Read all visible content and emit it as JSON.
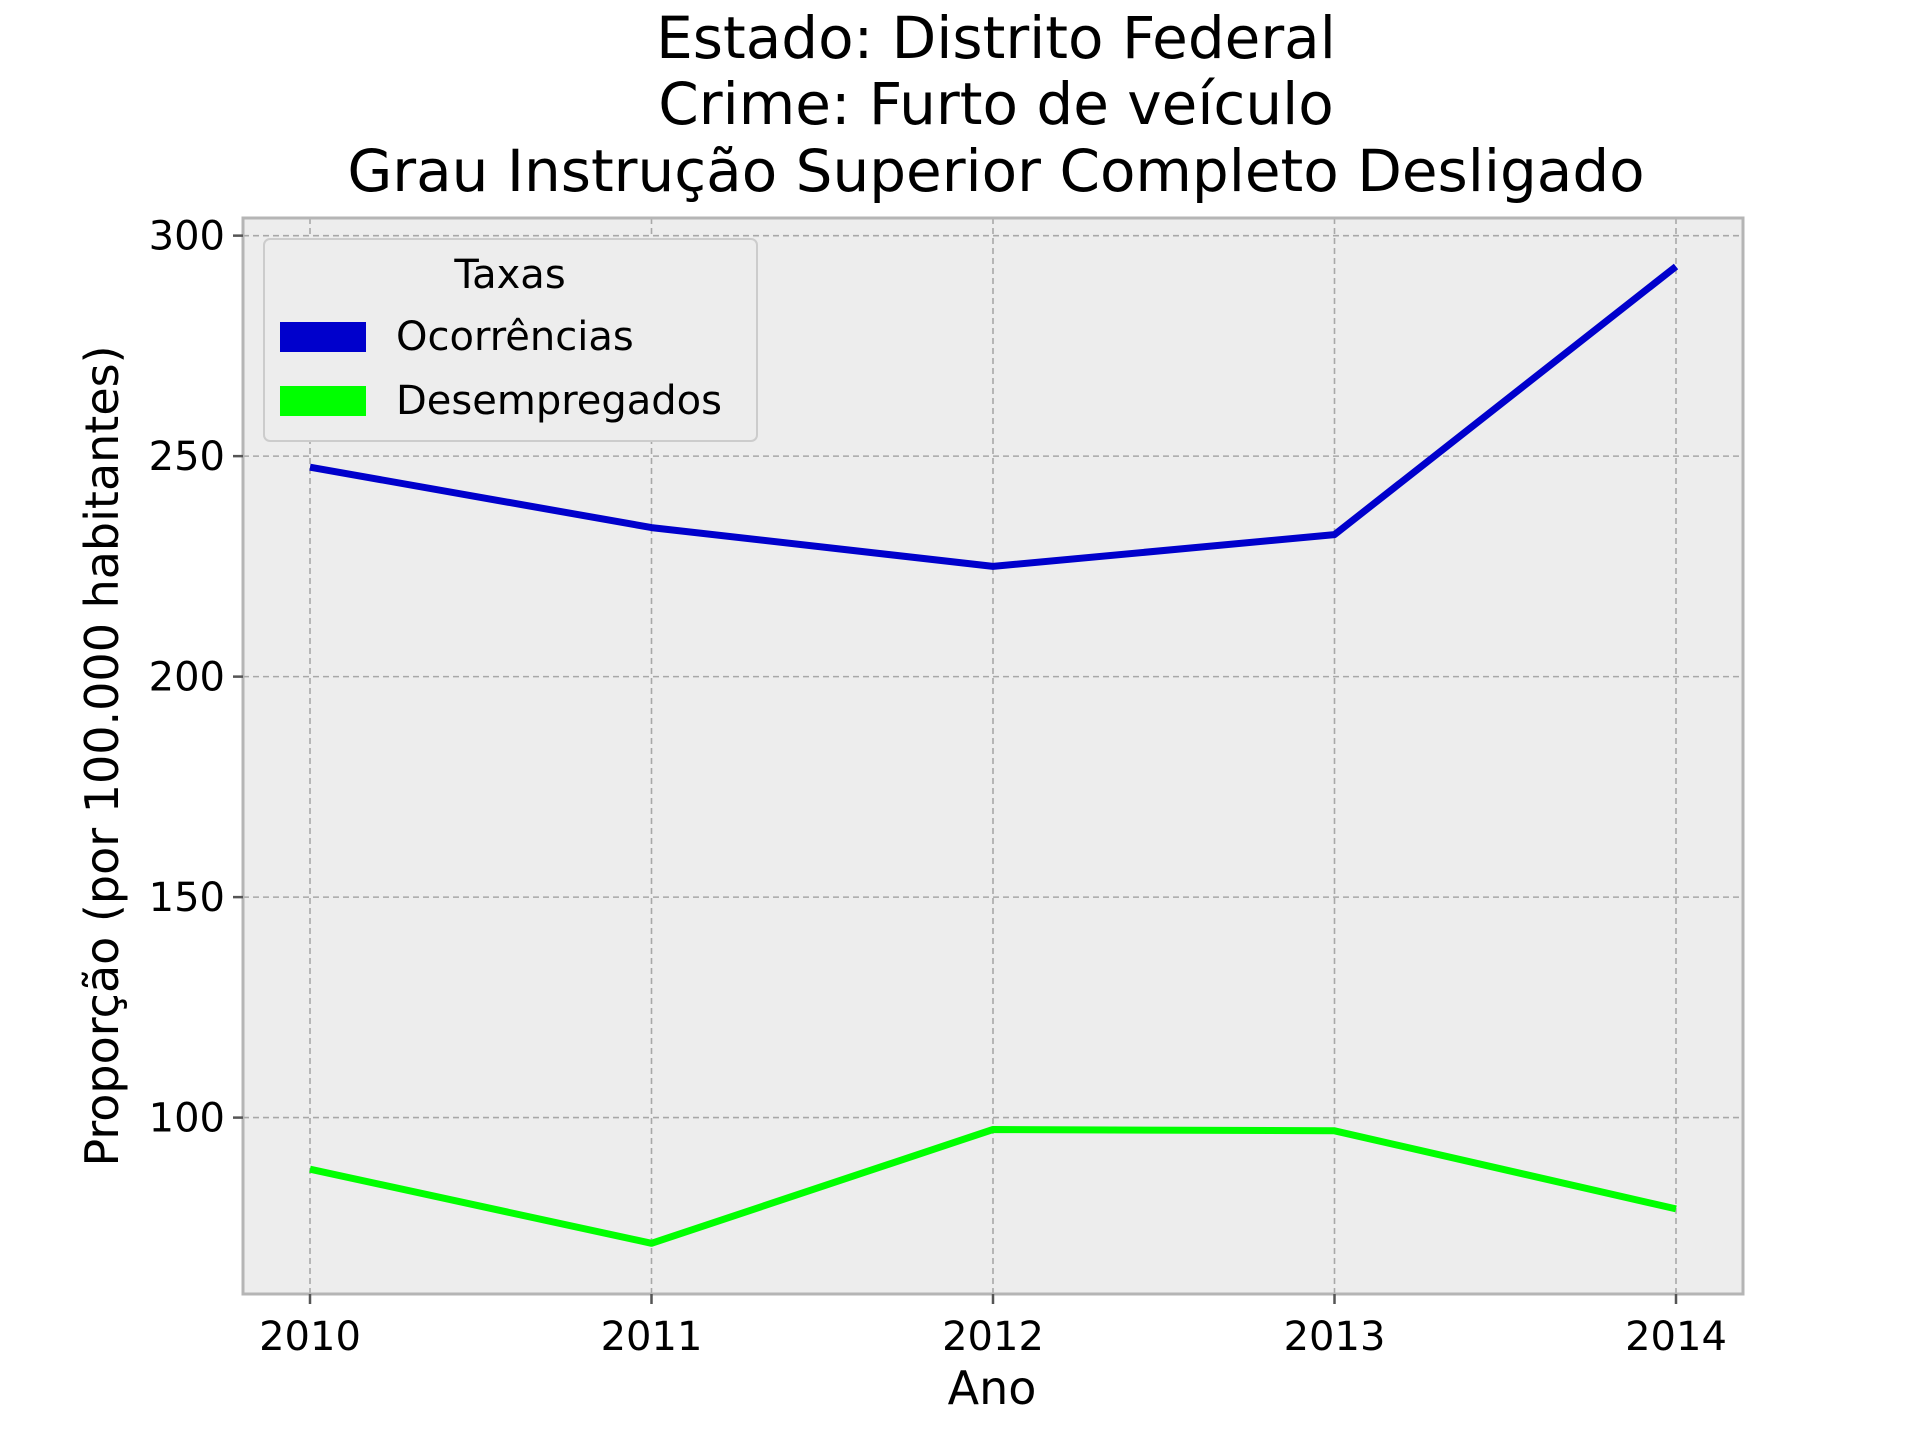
{
  "chart_data": {
    "type": "line",
    "title_lines": [
      "Estado: Distrito Federal",
      "Crime: Furto de veículo",
      "Grau Instrução  Superior Completo   Desligado"
    ],
    "xlabel": "Ano",
    "ylabel": "Proporção (por 100.000 habitantes)",
    "categories": [
      "2010",
      "2011",
      "2012",
      "2013",
      "2014"
    ],
    "ylim": [
      60,
      304
    ],
    "yticks": [
      100,
      150,
      200,
      250,
      300
    ],
    "grid": true,
    "legend": {
      "title": "Taxas",
      "placement": "top-left"
    },
    "series": [
      {
        "name": "Ocorrências",
        "color": "#0000cc",
        "values": [
          247.5,
          233.8,
          225.0,
          232.2,
          293.0
        ]
      },
      {
        "name": "Desempregados",
        "color": "#00ff00",
        "values": [
          88.3,
          71.5,
          97.3,
          97.0,
          79.3
        ]
      }
    ],
    "colors": {
      "plot_background": "#ededed",
      "grid": "#a8a8a8",
      "spine": "#b5b5b5"
    }
  }
}
